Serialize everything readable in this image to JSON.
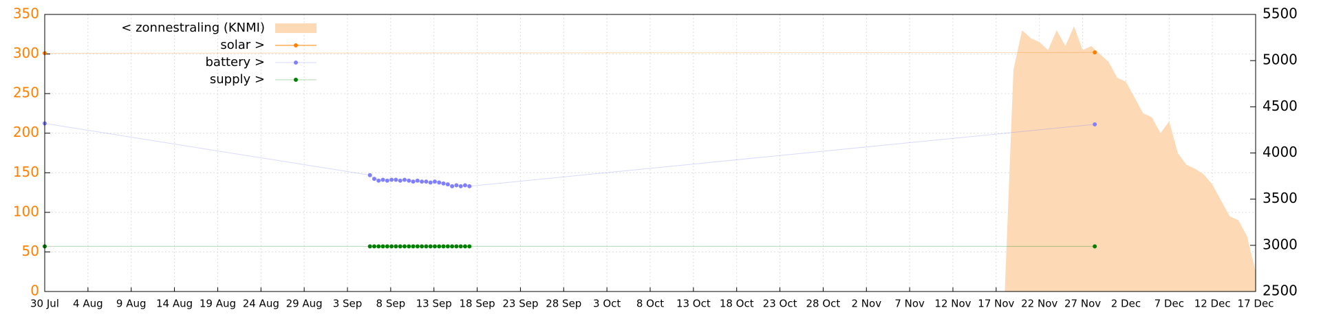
{
  "chart_data": {
    "type": "line",
    "xlim": [
      0,
      140
    ],
    "xticks": [
      {
        "value": 0,
        "label": "30 Jul"
      },
      {
        "value": 5,
        "label": "4 Aug"
      },
      {
        "value": 10,
        "label": "9 Aug"
      },
      {
        "value": 15,
        "label": "14 Aug"
      },
      {
        "value": 20,
        "label": "19 Aug"
      },
      {
        "value": 25,
        "label": "24 Aug"
      },
      {
        "value": 30,
        "label": "29 Aug"
      },
      {
        "value": 35,
        "label": "3 Sep"
      },
      {
        "value": 40,
        "label": "8 Sep"
      },
      {
        "value": 45,
        "label": "13 Sep"
      },
      {
        "value": 50,
        "label": "18 Sep"
      },
      {
        "value": 55,
        "label": "23 Sep"
      },
      {
        "value": 60,
        "label": "28 Sep"
      },
      {
        "value": 65,
        "label": "3 Oct"
      },
      {
        "value": 70,
        "label": "8 Oct"
      },
      {
        "value": 75,
        "label": "13 Oct"
      },
      {
        "value": 80,
        "label": "18 Oct"
      },
      {
        "value": 85,
        "label": "23 Oct"
      },
      {
        "value": 90,
        "label": "28 Oct"
      },
      {
        "value": 95,
        "label": "2 Nov"
      },
      {
        "value": 100,
        "label": "7 Nov"
      },
      {
        "value": 105,
        "label": "12 Nov"
      },
      {
        "value": 110,
        "label": "17 Nov"
      },
      {
        "value": 115,
        "label": "22 Nov"
      },
      {
        "value": 120,
        "label": "27 Nov"
      },
      {
        "value": 125,
        "label": "2 Dec"
      },
      {
        "value": 130,
        "label": "7 Dec"
      },
      {
        "value": 135,
        "label": "12 Dec"
      },
      {
        "value": 140,
        "label": "17 Dec"
      }
    ],
    "ylim": [
      0,
      350
    ],
    "yticks": [
      0,
      50,
      100,
      150,
      200,
      250,
      300,
      350
    ],
    "y2lim": [
      2500,
      5500
    ],
    "y2ticks": [
      2500,
      3000,
      3500,
      4000,
      4500,
      5000,
      5500
    ],
    "grid": true,
    "legend": "top-left",
    "series": [
      {
        "name": "< zonnestraling (KNMI)",
        "kind": "area",
        "color": "#fdd9b5",
        "x": [
          111,
          112,
          113,
          114,
          115,
          116,
          117,
          118,
          119,
          120,
          121,
          122,
          123,
          124,
          125,
          126,
          127,
          128,
          129,
          130,
          131,
          132,
          133,
          134,
          135,
          136,
          137,
          138,
          139,
          140
        ],
        "values": [
          0,
          280,
          330,
          320,
          315,
          305,
          330,
          310,
          335,
          305,
          310,
          300,
          290,
          270,
          265,
          245,
          225,
          220,
          200,
          215,
          175,
          160,
          155,
          148,
          135,
          115,
          95,
          90,
          70,
          25
        ]
      },
      {
        "name": "solar >",
        "kind": "points",
        "color": "#ff8000",
        "x": [
          0,
          121.4
        ],
        "values": [
          301,
          302
        ]
      },
      {
        "name": "battery >",
        "kind": "points",
        "color": "#8080ff",
        "axis": "y2",
        "x": [
          0,
          37.6,
          38.1,
          38.6,
          39.1,
          39.6,
          40.1,
          40.6,
          41.1,
          41.6,
          42.1,
          42.6,
          43.1,
          43.6,
          44.1,
          44.6,
          45.1,
          45.6,
          46.1,
          46.6,
          47.1,
          47.6,
          48.1,
          48.6,
          49.1,
          121.4
        ],
        "values": [
          4320,
          3760,
          3720,
          3700,
          3710,
          3700,
          3710,
          3710,
          3700,
          3710,
          3700,
          3690,
          3700,
          3690,
          3690,
          3680,
          3690,
          3680,
          3670,
          3660,
          3640,
          3650,
          3640,
          3650,
          3640,
          4310
        ]
      },
      {
        "name": "supply >",
        "kind": "points",
        "color": "#008000",
        "x": [
          0,
          37.6,
          38.1,
          38.6,
          39.1,
          39.6,
          40.1,
          40.6,
          41.1,
          41.6,
          42.1,
          42.6,
          43.1,
          43.6,
          44.1,
          44.6,
          45.1,
          45.6,
          46.1,
          46.6,
          47.1,
          47.6,
          48.1,
          48.6,
          49.1,
          121.4
        ],
        "values": [
          57,
          57,
          57,
          57,
          57,
          57,
          57,
          57,
          57,
          57,
          57,
          57,
          57,
          57,
          57,
          57,
          57,
          57,
          57,
          57,
          57,
          57,
          57,
          57,
          57,
          57
        ]
      }
    ]
  }
}
